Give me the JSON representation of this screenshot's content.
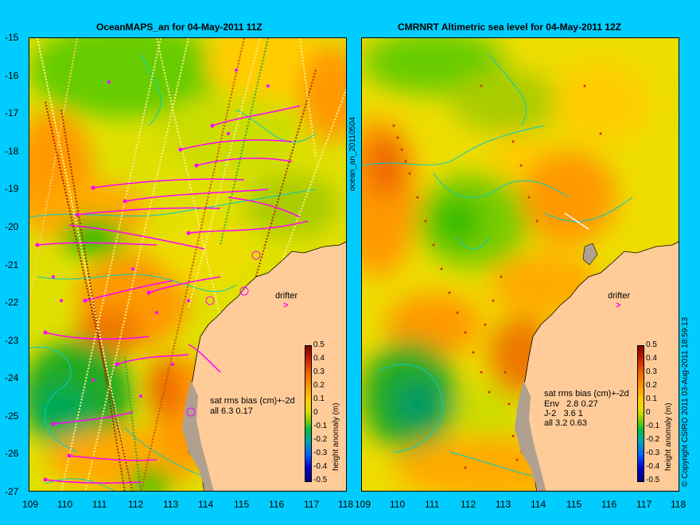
{
  "left": {
    "title": "OceanMAPS_an for 04-May-2011 11Z",
    "stats_header": "sat rms bias (cm)+-2d",
    "stats_lines": [
      "all 6.3 0.17"
    ],
    "side_label": "ocean_an_20110504"
  },
  "right": {
    "title": "CMRNRT Altimetric sea level  for 04-May-2011 12Z",
    "stats_header": "sat rms bias (cm)+-2d",
    "stats_lines": [
      "Env   2.8 0.27",
      "J-2   3.6 1",
      "all 3.2 0.63"
    ],
    "side_label": "© Copyright CSIRO 2011   03-Aug-2011 18:59:13"
  },
  "drifter_label": "drifter",
  "drifter_glyph": ">",
  "y_ticks": [
    "-15",
    "-16",
    "-17",
    "-18",
    "-19",
    "-20",
    "-21",
    "-22",
    "-23",
    "-24",
    "-25",
    "-26",
    "-27"
  ],
  "x_ticks": [
    "109",
    "110",
    "111",
    "112",
    "113",
    "114",
    "115",
    "116",
    "117",
    "118"
  ],
  "colorbar": {
    "label": "height anomaly (m)",
    "ticks": [
      "0.5",
      "0.4",
      "0.3",
      "0.2",
      "0.1",
      "0",
      "-0.1",
      "-0.2",
      "-0.3",
      "-0.4",
      "-0.5"
    ]
  },
  "colors": {
    "background": "#00ccff",
    "land": "#ffcc99",
    "coast": "#b0a090",
    "contour": "#00cccc",
    "track": "#ff00ff"
  }
}
